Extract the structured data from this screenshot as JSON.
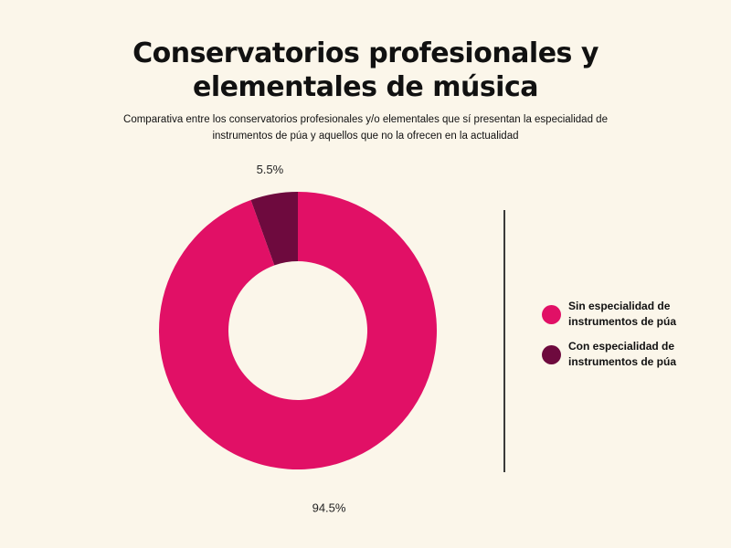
{
  "chart": {
    "title": "Conservatorios profesionales y elementales de música",
    "subtitle": "Comparativa entre los conservatorios profesionales y/o elementales que sí presentan la especialidad de instrumentos de púa y aquellos que no la ofrecen en la actualidad"
  },
  "chart_data": {
    "type": "pie",
    "variant": "donut",
    "title": "Conservatorios profesionales y elementales de música",
    "subtitle": "Comparativa entre los conservatorios profesionales y/o elementales que sí presentan la especialidad de instrumentos de púa y aquellos que no la ofrecen en la actualidad",
    "unit": "%",
    "legend_position": "right",
    "slices": [
      {
        "label": "Con especialidad de instrumentos de púa",
        "legend_text": "Con especialidad de\ninstrumentos de púa",
        "value": 5.5,
        "display": "5.5%",
        "color": "#6e0a3e"
      },
      {
        "label": "Sin especialidad de instrumentos de púa",
        "legend_text": "Sin especialidad de\ninstrumentos de púa",
        "value": 94.5,
        "display": "94.5%",
        "color": "#e11066"
      }
    ],
    "legend_order": [
      1,
      0
    ]
  }
}
